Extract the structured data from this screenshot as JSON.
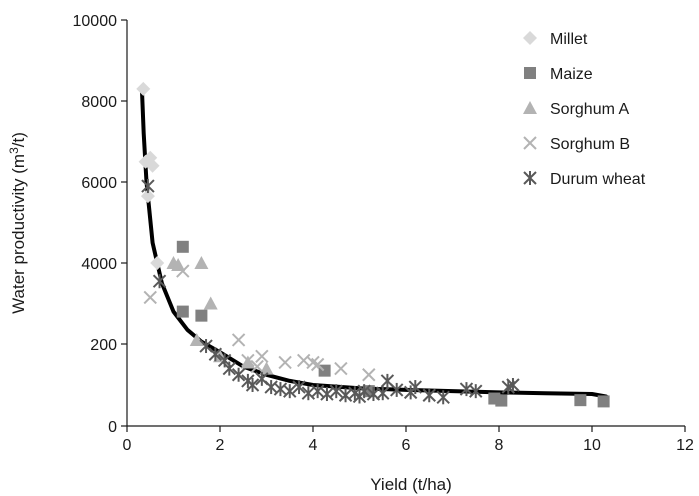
{
  "chart_data": {
    "type": "scatter",
    "title": "",
    "xlabel": "Yield (t/ha)",
    "ylabel_main": "Water productivity (m",
    "ylabel_sup": "3",
    "ylabel_end": "/t)",
    "x_ticks": [
      0,
      2,
      4,
      6,
      8,
      10,
      12
    ],
    "y_ticks": [
      "0",
      "200",
      "4000",
      "6000",
      "8000",
      "10000"
    ],
    "xlim": [
      0,
      12
    ],
    "ylim": [
      0,
      10000
    ],
    "y_scale_note": "axis is broken: lower band 0-200 shares the space of 0-2000",
    "grid": false,
    "legend_position": "top-right",
    "series": [
      {
        "name": "Millet",
        "marker": "diamond",
        "color": "#d9d9d9",
        "points": [
          [
            0.35,
            8300
          ],
          [
            0.4,
            6500
          ],
          [
            0.45,
            5650
          ],
          [
            0.5,
            6600
          ],
          [
            0.55,
            6400
          ],
          [
            0.65,
            4000
          ]
        ]
      },
      {
        "name": "Maize",
        "marker": "square",
        "color": "#808080",
        "points": [
          [
            1.2,
            4400
          ],
          [
            1.2,
            2800
          ],
          [
            1.6,
            2700
          ],
          [
            4.25,
            135
          ],
          [
            7.9,
            67
          ],
          [
            8.05,
            62
          ],
          [
            9.75,
            63
          ],
          [
            10.25,
            60
          ],
          [
            5.2,
            85
          ]
        ]
      },
      {
        "name": "Sorghum A",
        "marker": "triangle",
        "color": "#b3b3b3",
        "points": [
          [
            1.0,
            4000
          ],
          [
            1.1,
            3950
          ],
          [
            1.6,
            4000
          ],
          [
            1.8,
            3000
          ],
          [
            1.5,
            2100
          ],
          [
            2.0,
            170
          ],
          [
            2.6,
            155
          ],
          [
            3.0,
            140
          ]
        ]
      },
      {
        "name": "Sorghum B",
        "marker": "cross",
        "color": "#b3b3b3",
        "points": [
          [
            0.5,
            3150
          ],
          [
            1.2,
            3800
          ],
          [
            2.4,
            210
          ],
          [
            2.6,
            160
          ],
          [
            2.9,
            170
          ],
          [
            3.4,
            155
          ],
          [
            3.8,
            160
          ],
          [
            4.0,
            155
          ],
          [
            4.1,
            150
          ],
          [
            4.6,
            140
          ],
          [
            5.2,
            125
          ],
          [
            2.8,
            145
          ]
        ]
      },
      {
        "name": "Durum wheat",
        "marker": "asterisk",
        "color": "#595959",
        "points": [
          [
            0.45,
            5900
          ],
          [
            0.7,
            3550
          ],
          [
            1.7,
            1950
          ],
          [
            1.9,
            175
          ],
          [
            2.1,
            160
          ],
          [
            2.2,
            140
          ],
          [
            2.4,
            125
          ],
          [
            2.6,
            110
          ],
          [
            2.7,
            100
          ],
          [
            2.9,
            115
          ],
          [
            3.1,
            95
          ],
          [
            3.3,
            90
          ],
          [
            3.5,
            85
          ],
          [
            3.7,
            95
          ],
          [
            3.9,
            80
          ],
          [
            4.1,
            85
          ],
          [
            4.3,
            78
          ],
          [
            4.5,
            85
          ],
          [
            4.7,
            75
          ],
          [
            4.9,
            80
          ],
          [
            5.0,
            72
          ],
          [
            5.1,
            85
          ],
          [
            5.3,
            78
          ],
          [
            5.5,
            80
          ],
          [
            5.6,
            110
          ],
          [
            5.8,
            88
          ],
          [
            6.1,
            82
          ],
          [
            6.2,
            95
          ],
          [
            6.5,
            75
          ],
          [
            6.8,
            70
          ],
          [
            7.3,
            90
          ],
          [
            7.5,
            85
          ],
          [
            8.2,
            95
          ],
          [
            8.3,
            100
          ]
        ]
      }
    ],
    "curve": {
      "name": "fitted curve",
      "points": [
        [
          0.32,
          8300
        ],
        [
          0.36,
          7200
        ],
        [
          0.42,
          6000
        ],
        [
          0.55,
          4500
        ],
        [
          0.75,
          3500
        ],
        [
          1.0,
          2800
        ],
        [
          1.3,
          2350
        ],
        [
          1.6,
          2060
        ],
        [
          2.0,
          180
        ],
        [
          2.5,
          145
        ],
        [
          3.0,
          125
        ],
        [
          3.5,
          110
        ],
        [
          4.0,
          100
        ],
        [
          5.0,
          92
        ],
        [
          6.0,
          88
        ],
        [
          7.0,
          85
        ],
        [
          8.0,
          82
        ],
        [
          9.0,
          80
        ],
        [
          10.0,
          78
        ],
        [
          10.3,
          72
        ]
      ]
    }
  }
}
